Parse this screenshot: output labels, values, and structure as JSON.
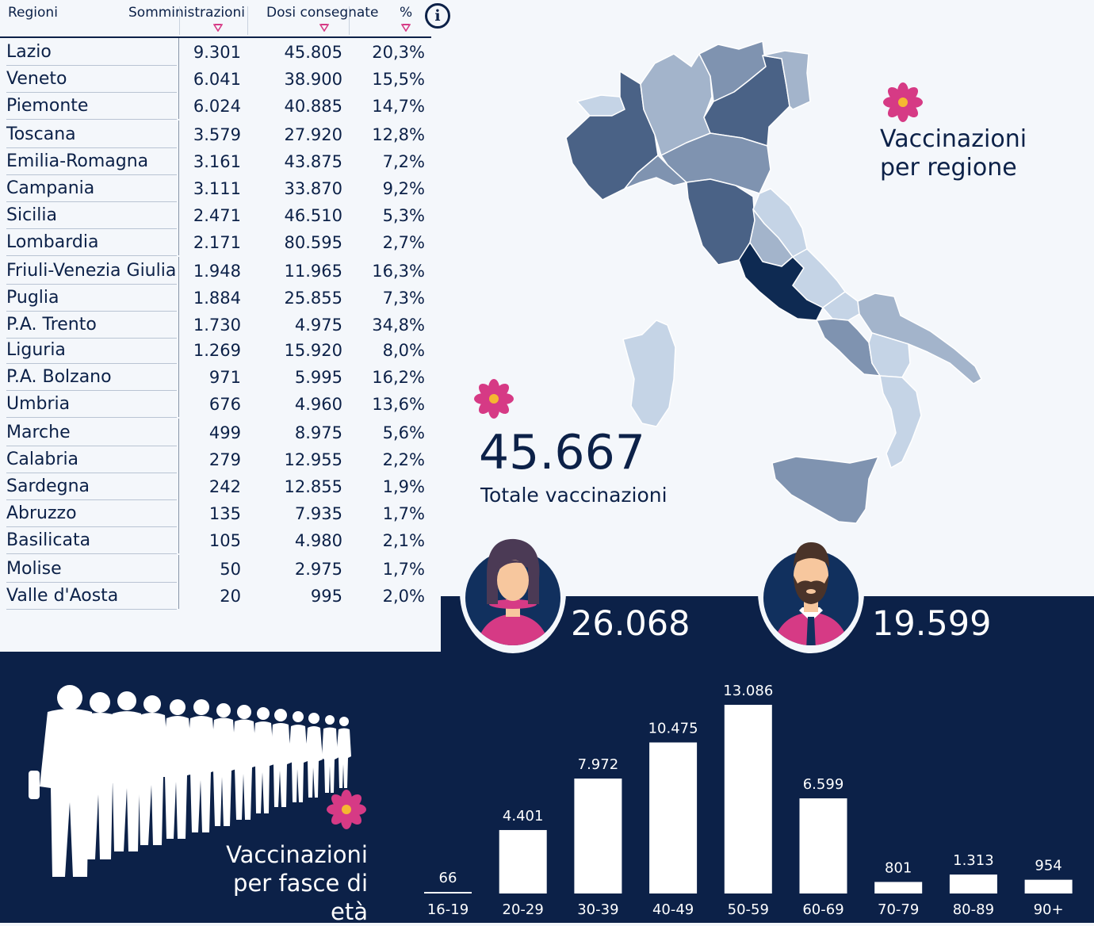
{
  "table": {
    "headers": {
      "region": "Regioni",
      "somministrazioni": "Somministrazioni",
      "dosi": "Dosi consegnate",
      "percent": "%"
    },
    "rows": [
      {
        "region": "Lazio",
        "somministrazioni": "9.301",
        "dosi": "45.805",
        "percent": "20,3%"
      },
      {
        "region": "Veneto",
        "somministrazioni": "6.041",
        "dosi": "38.900",
        "percent": "15,5%"
      },
      {
        "region": "Piemonte",
        "somministrazioni": "6.024",
        "dosi": "40.885",
        "percent": "14,7%"
      },
      {
        "region": "Toscana",
        "somministrazioni": "3.579",
        "dosi": "27.920",
        "percent": "12,8%"
      },
      {
        "region": "Emilia-Romagna",
        "somministrazioni": "3.161",
        "dosi": "43.875",
        "percent": "7,2%"
      },
      {
        "region": "Campania",
        "somministrazioni": "3.111",
        "dosi": "33.870",
        "percent": "9,2%"
      },
      {
        "region": "Sicilia",
        "somministrazioni": "2.471",
        "dosi": "46.510",
        "percent": "5,3%"
      },
      {
        "region": "Lombardia",
        "somministrazioni": "2.171",
        "dosi": "80.595",
        "percent": "2,7%"
      },
      {
        "region": "Friuli-Venezia Giulia",
        "somministrazioni": "1.948",
        "dosi": "11.965",
        "percent": "16,3%"
      },
      {
        "region": "Puglia",
        "somministrazioni": "1.884",
        "dosi": "25.855",
        "percent": "7,3%"
      },
      {
        "region": "P.A. Trento",
        "somministrazioni": "1.730",
        "dosi": "4.975",
        "percent": "34,8%"
      },
      {
        "region": "Liguria",
        "somministrazioni": "1.269",
        "dosi": "15.920",
        "percent": "8,0%"
      },
      {
        "region": "P.A. Bolzano",
        "somministrazioni": "971",
        "dosi": "5.995",
        "percent": "16,2%"
      },
      {
        "region": "Umbria",
        "somministrazioni": "676",
        "dosi": "4.960",
        "percent": "13,6%"
      },
      {
        "region": "Marche",
        "somministrazioni": "499",
        "dosi": "8.975",
        "percent": "5,6%"
      },
      {
        "region": "Calabria",
        "somministrazioni": "279",
        "dosi": "12.955",
        "percent": "2,2%"
      },
      {
        "region": "Sardegna",
        "somministrazioni": "242",
        "dosi": "12.855",
        "percent": "1,9%"
      },
      {
        "region": "Abruzzo",
        "somministrazioni": "135",
        "dosi": "7.935",
        "percent": "1,7%"
      },
      {
        "region": "Basilicata",
        "somministrazioni": "105",
        "dosi": "4.980",
        "percent": "2,1%"
      },
      {
        "region": "Molise",
        "somministrazioni": "50",
        "dosi": "2.975",
        "percent": "1,7%"
      },
      {
        "region": "Valle d'Aosta",
        "somministrazioni": "20",
        "dosi": "995",
        "percent": "2,0%"
      }
    ]
  },
  "info_icon": "i",
  "map": {
    "title_line1": "Vaccinazioni",
    "title_line2": "per regione"
  },
  "total": {
    "value": "45.667",
    "label": "Totale vaccinazioni"
  },
  "gender": {
    "female_value": "26.068",
    "male_value": "19.599"
  },
  "age_section": {
    "title_line1": "Vaccinazioni",
    "title_line2": "per fasce di età"
  },
  "chart_data": {
    "type": "bar",
    "categories": [
      "16-19",
      "20-29",
      "30-39",
      "40-49",
      "50-59",
      "60-69",
      "70-79",
      "80-89",
      "90+"
    ],
    "values": [
      66,
      4401,
      7972,
      10475,
      13086,
      6599,
      801,
      1313,
      954
    ],
    "value_labels": [
      "66",
      "4.401",
      "7.972",
      "10.475",
      "13.086",
      "6.599",
      "801",
      "1.313",
      "954"
    ],
    "ylim": [
      0,
      13086
    ]
  },
  "colors": {
    "navy": "#0c2148",
    "background": "#f4f7fb",
    "accent_pink": "#d63a85",
    "flower_center": "#f5b731",
    "map_darkest": "#0e2a52",
    "map_dark": "#4a6286",
    "map_mid": "#7f93b0",
    "map_light": "#a3b4cb",
    "map_lightest": "#c5d4e6"
  }
}
